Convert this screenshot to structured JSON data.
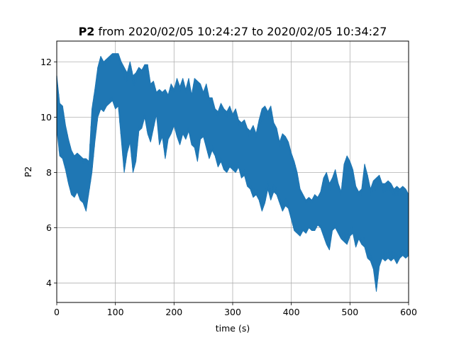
{
  "chart_data": {
    "type": "line",
    "title_bold": "P2",
    "title_rest": " from 2020/02/05 10:24:27 to 2020/02/05 10:34:27",
    "xlabel": "time (s)",
    "ylabel": "P2",
    "xlim": [
      0,
      600
    ],
    "ylim": [
      3.3,
      12.75
    ],
    "xticks": [
      0,
      100,
      200,
      300,
      400,
      500,
      600
    ],
    "yticks": [
      4,
      6,
      8,
      10,
      12
    ],
    "grid": true,
    "series_color": "#1f77b4",
    "series": [
      {
        "x": [
          0,
          5,
          10,
          15,
          20,
          25,
          30,
          35,
          40,
          45,
          50,
          55,
          60,
          65,
          70,
          75,
          80,
          85,
          90,
          95,
          100,
          105,
          110,
          115,
          120,
          125,
          130,
          135,
          140,
          145,
          150,
          155,
          160,
          165,
          170,
          175,
          180,
          185,
          190,
          195,
          200,
          205,
          210,
          215,
          220,
          225,
          230,
          235,
          240,
          245,
          250,
          255,
          260,
          265,
          270,
          275,
          280,
          285,
          290,
          295,
          300,
          305,
          310,
          315,
          320,
          325,
          330,
          335,
          340,
          345,
          350,
          355,
          360,
          365,
          370,
          375,
          380,
          385,
          390,
          395,
          400,
          405,
          410,
          415,
          420,
          425,
          430,
          435,
          440,
          445,
          450,
          455,
          460,
          465,
          470,
          475,
          480,
          485,
          490,
          495,
          500,
          505,
          510,
          515,
          520,
          525,
          530,
          535,
          540,
          545,
          550,
          555,
          560,
          565,
          570,
          575,
          580,
          585,
          590,
          595,
          600
        ],
        "ymin": [
          9.6,
          8.6,
          8.5,
          8.1,
          7.6,
          7.2,
          7.1,
          7.3,
          7.0,
          6.9,
          6.6,
          7.3,
          8.0,
          9.1,
          10.0,
          10.3,
          10.2,
          10.4,
          10.5,
          10.6,
          10.3,
          10.4,
          9.2,
          8.0,
          8.7,
          9.1,
          8.0,
          8.4,
          9.5,
          9.6,
          10.0,
          9.4,
          9.1,
          9.6,
          10.1,
          9.0,
          9.3,
          8.5,
          9.2,
          9.4,
          9.7,
          9.3,
          9.0,
          9.4,
          9.2,
          9.5,
          9.0,
          8.9,
          8.4,
          9.2,
          9.3,
          8.9,
          8.5,
          8.8,
          8.6,
          8.2,
          8.4,
          8.1,
          8.0,
          8.2,
          8.1,
          8.0,
          8.2,
          7.8,
          7.9,
          7.5,
          7.4,
          7.1,
          7.2,
          7.0,
          6.6,
          6.9,
          7.4,
          7.0,
          7.3,
          7.2,
          6.9,
          6.6,
          6.8,
          6.7,
          6.3,
          5.9,
          5.8,
          5.7,
          5.9,
          5.8,
          6.0,
          5.9,
          5.9,
          6.1,
          6.0,
          5.7,
          5.4,
          5.2,
          5.9,
          6.0,
          5.8,
          5.6,
          5.5,
          5.4,
          5.7,
          5.8,
          5.3,
          5.6,
          5.4,
          5.3,
          4.9,
          4.8,
          4.5,
          3.7,
          4.6,
          4.9,
          4.8,
          4.9,
          4.8,
          4.9,
          4.7,
          4.9,
          5.0,
          4.9,
          5.0
        ],
        "ymax": [
          11.5,
          10.5,
          10.4,
          9.7,
          9.2,
          8.8,
          8.6,
          8.7,
          8.6,
          8.5,
          8.5,
          8.4,
          10.3,
          11.0,
          11.8,
          12.2,
          12.0,
          12.1,
          12.2,
          12.3,
          12.3,
          12.3,
          12.0,
          11.8,
          11.6,
          12.0,
          11.5,
          11.6,
          11.8,
          11.7,
          11.9,
          11.9,
          11.2,
          11.3,
          10.9,
          11.0,
          10.9,
          11.0,
          10.8,
          11.2,
          11.0,
          11.4,
          11.1,
          11.4,
          11.0,
          11.4,
          10.8,
          11.4,
          11.3,
          11.2,
          10.9,
          11.2,
          10.7,
          10.7,
          10.3,
          10.2,
          10.5,
          10.3,
          10.2,
          10.4,
          10.1,
          10.3,
          9.9,
          9.8,
          9.9,
          9.6,
          9.5,
          9.7,
          9.4,
          9.9,
          10.3,
          10.4,
          10.2,
          10.4,
          9.8,
          9.6,
          9.1,
          9.4,
          9.3,
          9.1,
          8.7,
          8.4,
          8.0,
          7.4,
          7.2,
          7.0,
          7.1,
          7.0,
          7.2,
          7.1,
          7.3,
          7.8,
          8.0,
          7.6,
          7.8,
          8.1,
          7.6,
          7.3,
          8.3,
          8.6,
          8.4,
          8.1,
          7.5,
          7.3,
          7.4,
          8.3,
          7.9,
          7.4,
          7.7,
          7.8,
          7.9,
          7.6,
          7.6,
          7.7,
          7.6,
          7.4,
          7.5,
          7.4,
          7.5,
          7.4,
          7.2
        ]
      }
    ]
  }
}
